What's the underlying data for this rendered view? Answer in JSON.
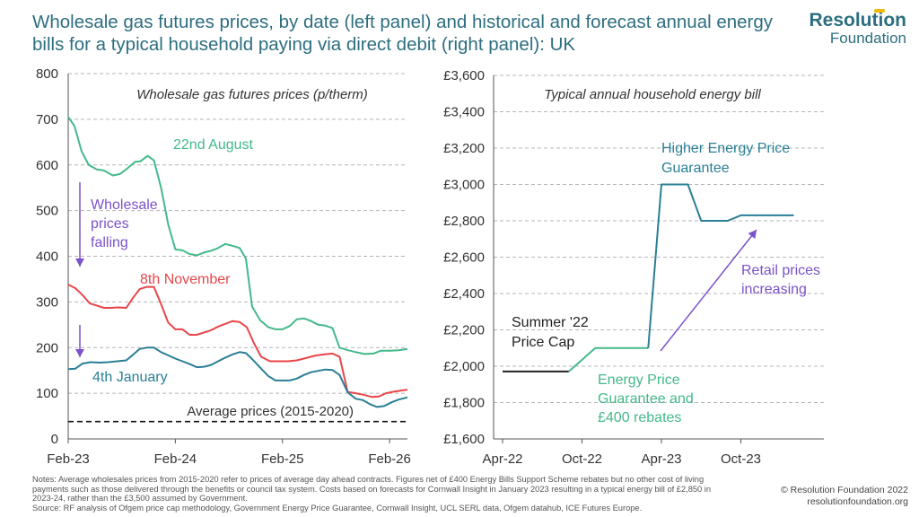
{
  "title": "Wholesale gas futures prices, by date (left panel) and historical and forecast annual energy bills for a typical household paying via direct debit (right panel): UK",
  "logo": {
    "line1": "Resolution",
    "line2": "Foundation"
  },
  "footer": {
    "notes": "Notes: Average wholesales prices from 2015-2020 refer to prices of average day ahead contracts. Figures net of £400 Energy Bills Support Scheme rebates but no other cost of living payments such as those delivered through the benefits or council tax system. Costs based on forecasts for Cornwall Insight in January 2023 resulting in a typical energy bill of £2,850 in 2023-24, rather than the £3,500 assumed by Government.",
    "source": "Source: RF analysis of Ofgem price cap methodology, Government Energy Price Guarantee, Cornwall Insight, UCL SERL data, Ofgem datahub, ICE Futures Europe.",
    "copyright": "© Resolution Foundation 2022",
    "website": "resolutionfoundation.org"
  },
  "colors": {
    "green": "#43b98a",
    "red": "#e8464a",
    "teal": "#2a7f95",
    "purple": "#7b52c9",
    "black": "#222222",
    "grid": "#b5b5b5"
  },
  "chart_data": [
    {
      "type": "line",
      "title": "Wholesale gas futures prices (p/therm)",
      "x_ticks": [
        "Feb-23",
        "Feb-24",
        "Feb-25",
        "Feb-26"
      ],
      "ylim": [
        0,
        800
      ],
      "y_ticks": [
        0,
        100,
        200,
        300,
        400,
        500,
        600,
        700,
        800
      ],
      "x_range_months": [
        0,
        38
      ],
      "series": [
        {
          "name": "22nd August",
          "color": "green",
          "values": [
            [
              0,
              705
            ],
            [
              0.7,
              685
            ],
            [
              1.5,
              630
            ],
            [
              2.3,
              600
            ],
            [
              3.2,
              590
            ],
            [
              4,
              588
            ],
            [
              5,
              577
            ],
            [
              5.8,
              580
            ],
            [
              6.6,
              592
            ],
            [
              7.5,
              607
            ],
            [
              8.1,
              608
            ],
            [
              8.9,
              620
            ],
            [
              9.6,
              610
            ],
            [
              10.4,
              550
            ],
            [
              11.2,
              470
            ],
            [
              12,
              415
            ],
            [
              12.8,
              413
            ],
            [
              13.6,
              405
            ],
            [
              14.4,
              402
            ],
            [
              15.2,
              408
            ],
            [
              16,
              412
            ],
            [
              16.8,
              418
            ],
            [
              17.6,
              427
            ],
            [
              18.4,
              423
            ],
            [
              19.2,
              418
            ],
            [
              19.9,
              395
            ],
            [
              20.6,
              290
            ],
            [
              21.5,
              260
            ],
            [
              22.4,
              245
            ],
            [
              23.2,
              240
            ],
            [
              24,
              240
            ],
            [
              24.8,
              247
            ],
            [
              25.6,
              262
            ],
            [
              26.4,
              264
            ],
            [
              27.2,
              258
            ],
            [
              28,
              250
            ],
            [
              28.8,
              248
            ],
            [
              29.6,
              243
            ],
            [
              30.4,
              200
            ],
            [
              31.2,
              195
            ],
            [
              32.2,
              190
            ],
            [
              33.2,
              186
            ],
            [
              34.2,
              187
            ],
            [
              35,
              193
            ],
            [
              36,
              193
            ],
            [
              37,
              194
            ],
            [
              38,
              197
            ]
          ]
        },
        {
          "name": "8th November",
          "color": "red",
          "values": [
            [
              0,
              338
            ],
            [
              0.8,
              330
            ],
            [
              1.6,
              315
            ],
            [
              2.4,
              297
            ],
            [
              3.2,
              292
            ],
            [
              4,
              287
            ],
            [
              4.8,
              287
            ],
            [
              5.6,
              288
            ],
            [
              6.5,
              287
            ],
            [
              7.3,
              310
            ],
            [
              8,
              328
            ],
            [
              8.8,
              333
            ],
            [
              9.6,
              333
            ],
            [
              10.4,
              295
            ],
            [
              11.2,
              255
            ],
            [
              12,
              240
            ],
            [
              12.8,
              240
            ],
            [
              13.6,
              228
            ],
            [
              14.4,
              228
            ],
            [
              15.2,
              233
            ],
            [
              16,
              238
            ],
            [
              16.8,
              246
            ],
            [
              17.6,
              252
            ],
            [
              18.4,
              258
            ],
            [
              19.2,
              256
            ],
            [
              20,
              245
            ],
            [
              20.8,
              210
            ],
            [
              21.6,
              180
            ],
            [
              22.6,
              170
            ],
            [
              23.6,
              170
            ],
            [
              24.6,
              170
            ],
            [
              25.6,
              172
            ],
            [
              26.6,
              177
            ],
            [
              27.6,
              182
            ],
            [
              28.6,
              185
            ],
            [
              29.6,
              187
            ],
            [
              30.4,
              180
            ],
            [
              31.3,
              103
            ],
            [
              32.2,
              100
            ],
            [
              33,
              97
            ],
            [
              34,
              92
            ],
            [
              34.8,
              93
            ],
            [
              35.6,
              100
            ],
            [
              36.6,
              104
            ],
            [
              38,
              108
            ]
          ]
        },
        {
          "name": "4th January",
          "color": "teal",
          "values": [
            [
              0,
              153
            ],
            [
              0.8,
              154
            ],
            [
              1.6,
              165
            ],
            [
              2.5,
              168
            ],
            [
              3.5,
              167
            ],
            [
              4.5,
              168
            ],
            [
              5.5,
              170
            ],
            [
              6.5,
              172
            ],
            [
              7.3,
              185
            ],
            [
              8,
              197
            ],
            [
              8.8,
              200
            ],
            [
              9.6,
              200
            ],
            [
              10.4,
              190
            ],
            [
              11.2,
              183
            ],
            [
              12,
              176
            ],
            [
              12.8,
              170
            ],
            [
              13.6,
              164
            ],
            [
              14.4,
              157
            ],
            [
              15.2,
              158
            ],
            [
              16,
              162
            ],
            [
              16.8,
              170
            ],
            [
              17.6,
              178
            ],
            [
              18.4,
              185
            ],
            [
              19.2,
              190
            ],
            [
              19.9,
              188
            ],
            [
              20.6,
              175
            ],
            [
              21.5,
              156
            ],
            [
              22.4,
              138
            ],
            [
              23.2,
              128
            ],
            [
              24,
              128
            ],
            [
              24.8,
              128
            ],
            [
              25.6,
              132
            ],
            [
              26.4,
              140
            ],
            [
              27.2,
              146
            ],
            [
              28,
              149
            ],
            [
              28.8,
              152
            ],
            [
              29.6,
              151
            ],
            [
              30.4,
              140
            ],
            [
              31.3,
              102
            ],
            [
              32.2,
              88
            ],
            [
              33,
              85
            ],
            [
              33.8,
              76
            ],
            [
              34.6,
              70
            ],
            [
              35.4,
              72
            ],
            [
              36.2,
              80
            ],
            [
              37,
              86
            ],
            [
              38,
              91
            ]
          ]
        }
      ],
      "reference_line": {
        "label": "Average prices (2015-2020)",
        "value": 38,
        "style": "dashed"
      },
      "annotations": [
        {
          "text_lines": [
            "Wholesale",
            "prices",
            "falling"
          ],
          "color": "purple"
        }
      ]
    },
    {
      "type": "line",
      "title": "Typical annual household energy bill",
      "x_ticks": [
        "Apr-22",
        "Oct-22",
        "Apr-23",
        "Oct-23"
      ],
      "ylim": [
        1600,
        3600
      ],
      "y_ticks": [
        "£1,600",
        "£1,800",
        "£2,000",
        "£2,200",
        "£2,400",
        "£2,600",
        "£2,800",
        "£3,000",
        "£3,200",
        "£3,400",
        "£3,600"
      ],
      "series": [
        {
          "name": "Summer '22 Price Cap",
          "color": "black",
          "values": [
            [
              "Apr-22",
              1971
            ],
            [
              "Sep-22",
              1971
            ]
          ]
        },
        {
          "name": "Energy Price Guarantee and £400 rebates",
          "color": "green",
          "values": [
            [
              "Sep-22",
              1971
            ],
            [
              "Nov-22",
              2100
            ],
            [
              "Mar-23",
              2100
            ]
          ]
        },
        {
          "name": "Higher Energy Price Guarantee",
          "color": "teal",
          "values": [
            [
              "Mar-23",
              2100
            ],
            [
              "Apr-23",
              3000
            ],
            [
              "Jun-23",
              3000
            ],
            [
              "Jul-23",
              2800
            ],
            [
              "Sep-23",
              2800
            ],
            [
              "Oct-23",
              2830
            ],
            [
              "Feb-24",
              2830
            ]
          ]
        }
      ],
      "annotations": [
        {
          "text_lines": [
            "Summer '22",
            "Price Cap"
          ],
          "color": "black"
        },
        {
          "text_lines": [
            "Energy Price",
            "Guarantee and",
            "£400 rebates"
          ],
          "color": "green"
        },
        {
          "text_lines": [
            "Higher Energy Price",
            "Guarantee"
          ],
          "color": "teal"
        },
        {
          "text_lines": [
            "Retail prices",
            "increasing"
          ],
          "color": "purple"
        }
      ]
    }
  ]
}
